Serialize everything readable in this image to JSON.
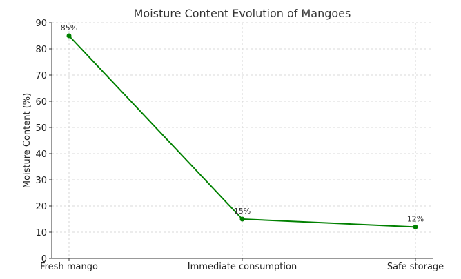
{
  "chart_data": {
    "type": "line",
    "title": "Moisture Content Evolution of Mangoes",
    "xlabel": "",
    "ylabel": "Moisture Content (%)",
    "categories": [
      "Fresh mango",
      "Immediate consumption",
      "Safe storage"
    ],
    "series": [
      {
        "values": [
          85,
          15,
          12
        ],
        "data_labels": [
          "85%",
          "15%",
          "12%"
        ],
        "color": "#008000"
      }
    ],
    "ylim": [
      0,
      90
    ],
    "yticks": [
      0,
      10,
      20,
      30,
      40,
      50,
      60,
      70,
      80,
      90
    ],
    "grid": true,
    "legend": "none"
  }
}
